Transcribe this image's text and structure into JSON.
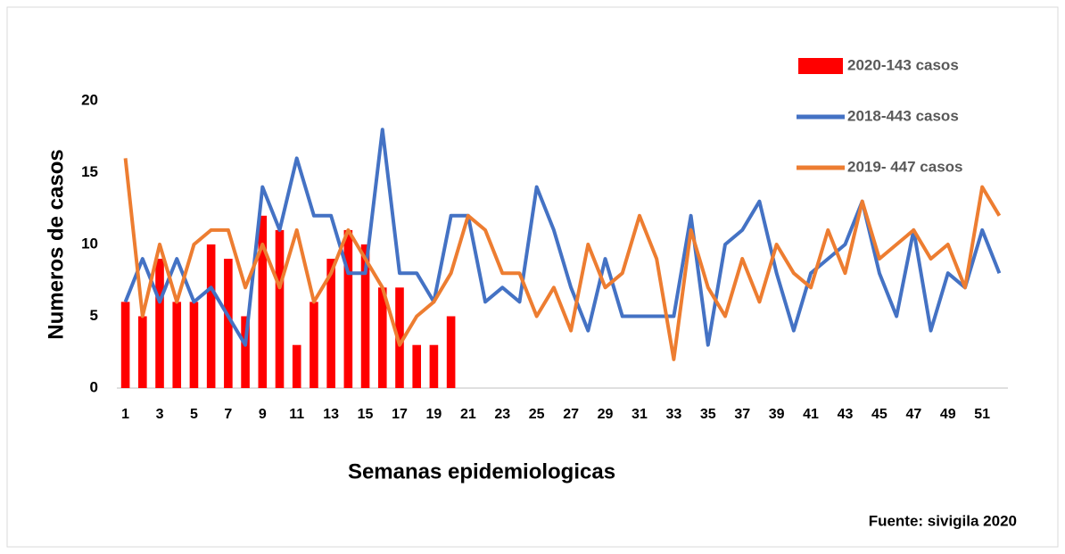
{
  "chart_data": {
    "type": "bar-line",
    "y_label": "Numeros de casos",
    "x_label": "Semanas epidemiologicas",
    "source": "Fuente: sivigila  2020",
    "x": [
      1,
      2,
      3,
      4,
      5,
      6,
      7,
      8,
      9,
      10,
      11,
      12,
      13,
      14,
      15,
      16,
      17,
      18,
      19,
      20,
      21,
      22,
      23,
      24,
      25,
      26,
      27,
      28,
      29,
      30,
      31,
      32,
      33,
      34,
      35,
      36,
      37,
      38,
      39,
      40,
      41,
      42,
      43,
      44,
      45,
      46,
      47,
      48,
      49,
      50,
      51,
      52
    ],
    "xlim": [
      0.5,
      52.5
    ],
    "xticks": [
      1,
      3,
      5,
      7,
      9,
      11,
      13,
      15,
      17,
      19,
      21,
      23,
      25,
      27,
      29,
      31,
      33,
      35,
      37,
      39,
      41,
      43,
      45,
      47,
      49,
      51
    ],
    "ylim": [
      0,
      20
    ],
    "yticks": [
      0,
      5,
      10,
      15,
      20
    ],
    "legend": "upper right",
    "series": [
      {
        "name": "2020-143 casos",
        "kind": "bar",
        "color": "#ff0000",
        "values": [
          6,
          5,
          9,
          6,
          6,
          10,
          9,
          5,
          12,
          11,
          3,
          6,
          9,
          11,
          10,
          7,
          7,
          3,
          3,
          5,
          null,
          null,
          null,
          null,
          null,
          null,
          null,
          null,
          null,
          null,
          null,
          null,
          null,
          null,
          null,
          null,
          null,
          null,
          null,
          null,
          null,
          null,
          null,
          null,
          null,
          null,
          null,
          null,
          null,
          null,
          null,
          null
        ]
      },
      {
        "name": "2018-443 casos",
        "kind": "line",
        "color": "#4472c4",
        "values": [
          6,
          9,
          6,
          9,
          6,
          7,
          5,
          3,
          14,
          11,
          16,
          12,
          12,
          8,
          8,
          18,
          8,
          8,
          6,
          12,
          12,
          6,
          7,
          6,
          14,
          11,
          7,
          4,
          9,
          5,
          5,
          5,
          5,
          12,
          3,
          10,
          11,
          13,
          8,
          4,
          8,
          9,
          10,
          13,
          8,
          5,
          11,
          4,
          8,
          7,
          11,
          8
        ]
      },
      {
        "name": "2019- 447 casos",
        "kind": "line",
        "color": "#ed7d31",
        "values": [
          16,
          5,
          10,
          6,
          10,
          11,
          11,
          7,
          10,
          7,
          11,
          6,
          8,
          11,
          9,
          7,
          3,
          5,
          6,
          8,
          12,
          11,
          8,
          8,
          5,
          7,
          4,
          10,
          7,
          8,
          12,
          9,
          2,
          11,
          7,
          5,
          9,
          6,
          10,
          8,
          7,
          11,
          8,
          13,
          9,
          10,
          11,
          9,
          10,
          7,
          14,
          12
        ]
      }
    ]
  }
}
